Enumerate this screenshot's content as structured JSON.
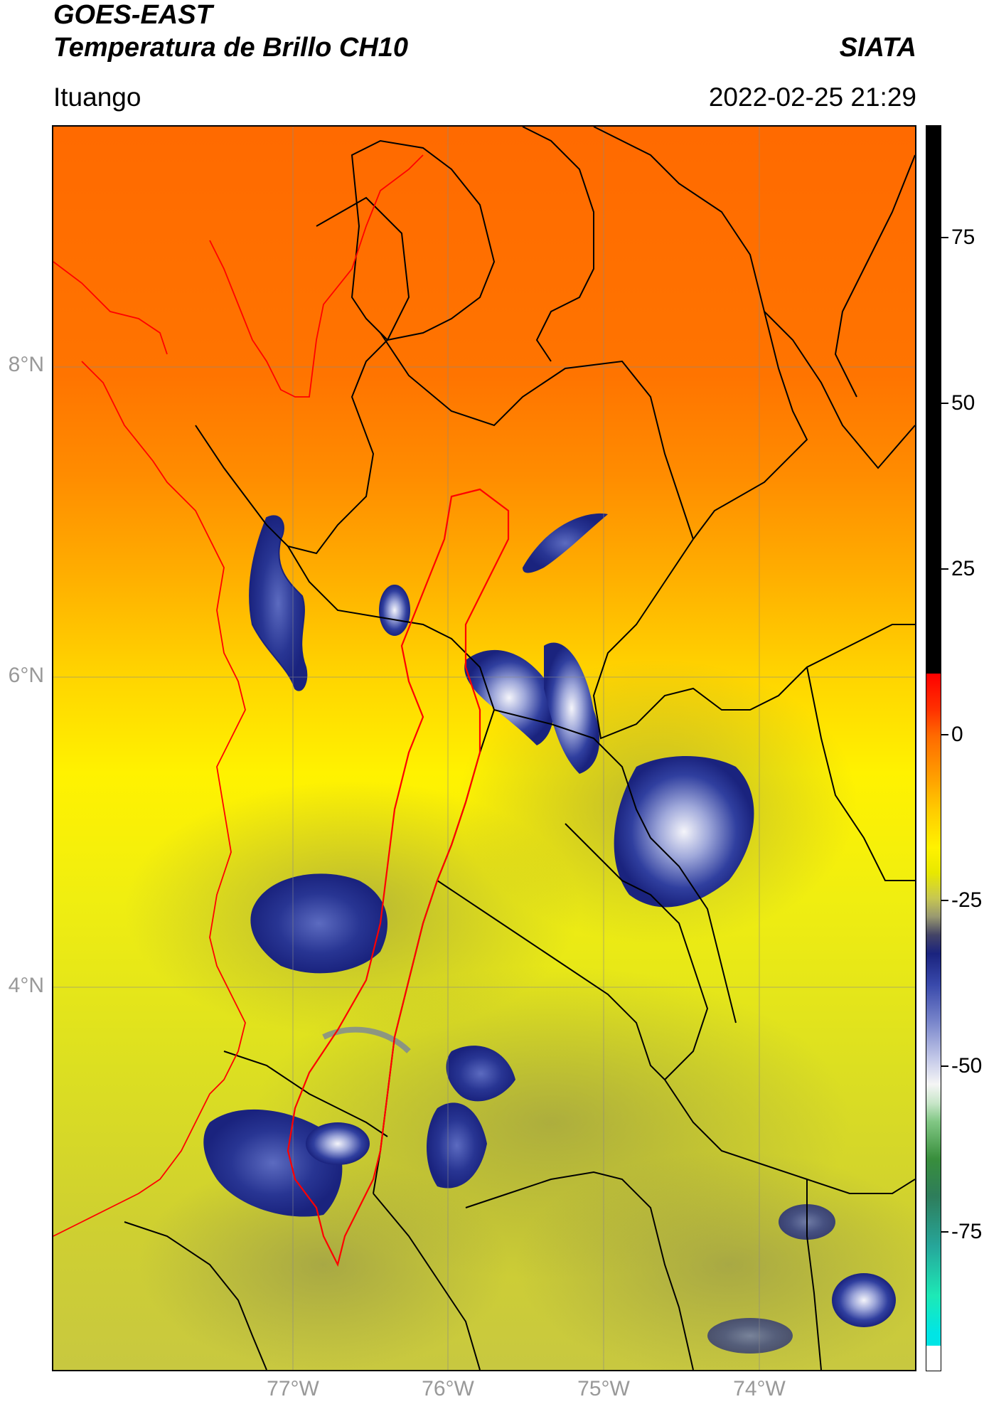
{
  "header": {
    "title_line1": "GOES-EAST",
    "title_line2": "Temperatura de Brillo CH10",
    "brand": "SIATA",
    "location": "Ituango",
    "timestamp": "2022-02-25 21:29"
  },
  "map": {
    "lat_labels": [
      "8°N",
      "6°N",
      "4°N"
    ],
    "lon_labels": [
      "77°W",
      "76°W",
      "75°W",
      "74°W"
    ],
    "colors": {
      "warm": "#ff6a00",
      "mid": "#ffd400",
      "cool": "#dde020",
      "cloud": "#1a237e",
      "cloud_core": "#e8eaf6",
      "border": "#000000",
      "basin": "#ff0000",
      "grid": "#888888"
    }
  },
  "colorbar": {
    "labels": [
      "75",
      "50",
      "25",
      "0",
      "-25",
      "-50",
      "-75"
    ],
    "values": [
      75,
      50,
      25,
      0,
      -25,
      -50,
      -75
    ],
    "range": [
      -96,
      92
    ]
  }
}
